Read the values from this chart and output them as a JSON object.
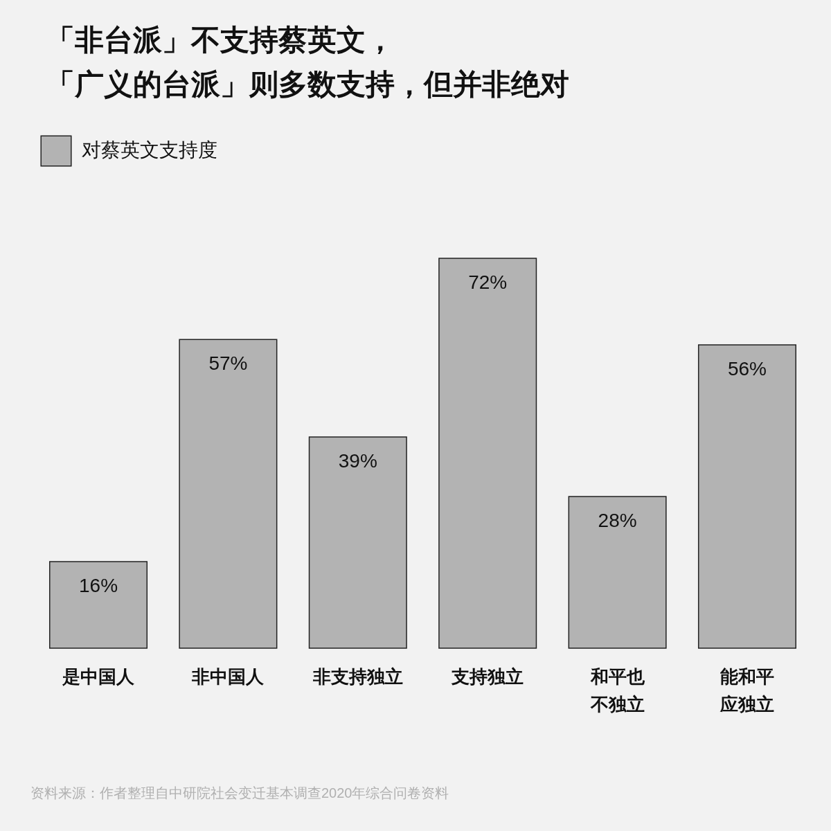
{
  "chart_data": {
    "type": "bar",
    "title": "「非台派」不支持蔡英文，「广义的台派」则多数支持，但并非绝对",
    "categories": [
      "是中国人",
      "非中国人",
      "非支持独立",
      "支持独立",
      "和平也不独立",
      "能和平应独立"
    ],
    "series": [
      {
        "name": "对蔡英文支持度",
        "color": "#b3b3b3",
        "values": [
          16,
          57,
          39,
          72,
          28,
          56
        ],
        "value_labels": [
          "16%",
          "57%",
          "39%",
          "72%",
          "28%",
          "56%"
        ]
      }
    ],
    "legend": "top left",
    "annotations": [
      "资料来源：作者整理自中研院社会变迁基本调查2020年综合问卷资料"
    ]
  }
}
